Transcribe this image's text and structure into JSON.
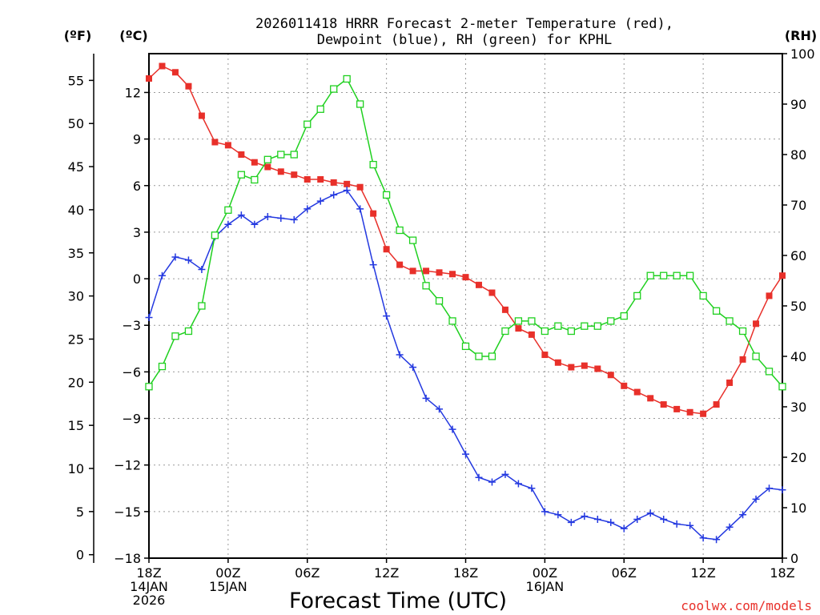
{
  "chart_data": {
    "type": "line",
    "title_lines": [
      "2026011418 HRRR Forecast 2-meter Temperature (red),",
      "Dewpoint (blue), RH (green) for KPHL"
    ],
    "units": {
      "fahrenheit": "(ºF)",
      "celsius": "(ºC)",
      "rh": "(RH)"
    },
    "xlabel": "Forecast Time (UTC)",
    "credit": "coolwx.com/models",
    "x_range_hours": [
      0,
      48
    ],
    "x_ticks": [
      {
        "hour": 0,
        "lines": [
          "18Z",
          "14JAN",
          "2026"
        ]
      },
      {
        "hour": 6,
        "lines": [
          "00Z",
          "15JAN"
        ]
      },
      {
        "hour": 12,
        "lines": [
          "06Z"
        ]
      },
      {
        "hour": 18,
        "lines": [
          "12Z"
        ]
      },
      {
        "hour": 24,
        "lines": [
          "18Z"
        ]
      },
      {
        "hour": 30,
        "lines": [
          "00Z",
          "16JAN"
        ]
      },
      {
        "hour": 36,
        "lines": [
          "06Z"
        ]
      },
      {
        "hour": 42,
        "lines": [
          "12Z"
        ]
      },
      {
        "hour": 48,
        "lines": [
          "18Z"
        ]
      }
    ],
    "celsius_axis": {
      "range": [
        -18,
        14.5
      ],
      "ticks": [
        "12",
        "9",
        "6",
        "3",
        "0",
        "−3",
        "−6",
        "−9",
        "−12",
        "−15",
        "−18"
      ],
      "tick_values": [
        12,
        9,
        6,
        3,
        0,
        -3,
        -6,
        -9,
        -12,
        -15,
        -18
      ]
    },
    "fahrenheit_axis": {
      "ticks": [
        "55",
        "50",
        "45",
        "40",
        "35",
        "30",
        "25",
        "20",
        "15",
        "10",
        "5",
        "0"
      ],
      "tick_values": [
        55,
        50,
        45,
        40,
        35,
        30,
        25,
        20,
        15,
        10,
        5,
        0
      ]
    },
    "rh_axis": {
      "range": [
        0,
        100
      ],
      "ticks": [
        "100",
        "90",
        "80",
        "70",
        "60",
        "50",
        "40",
        "30",
        "20",
        "10",
        "0"
      ],
      "tick_values": [
        100,
        90,
        80,
        70,
        60,
        50,
        40,
        30,
        20,
        10,
        0
      ]
    },
    "hours": [
      0,
      1,
      2,
      3,
      4,
      5,
      6,
      7,
      8,
      9,
      10,
      11,
      12,
      13,
      14,
      15,
      16,
      17,
      18,
      19,
      20,
      21,
      22,
      23,
      24,
      25,
      26,
      27,
      28,
      29,
      30,
      31,
      32,
      33,
      34,
      35,
      36,
      37,
      38,
      39,
      40,
      41,
      42,
      43,
      44,
      45,
      46,
      47,
      48
    ],
    "series": [
      {
        "name": "2-meter Temperature",
        "axis": "celsius",
        "color": "#e8302a",
        "marker": "filled-square",
        "values": [
          12.9,
          13.7,
          13.3,
          12.4,
          10.5,
          8.8,
          8.6,
          8.0,
          7.5,
          7.2,
          6.9,
          6.7,
          6.4,
          6.4,
          6.2,
          6.1,
          5.9,
          4.2,
          1.9,
          0.9,
          0.5,
          0.5,
          0.4,
          0.3,
          0.1,
          -0.4,
          -0.9,
          -2.0,
          -3.2,
          -3.6,
          -4.9,
          -5.4,
          -5.7,
          -5.6,
          -5.8,
          -6.2,
          -6.9,
          -7.3,
          -7.7,
          -8.1,
          -8.4,
          -8.6,
          -8.7,
          -8.1,
          -6.7,
          -5.2,
          -2.9,
          -1.1,
          0.2
        ]
      },
      {
        "name": "Dewpoint",
        "axis": "celsius",
        "color": "#2439e0",
        "marker": "plus",
        "values": [
          -2.5,
          0.2,
          1.4,
          1.2,
          0.6,
          2.7,
          3.5,
          4.1,
          3.5,
          4.0,
          3.9,
          3.8,
          4.5,
          5.0,
          5.4,
          5.7,
          4.5,
          0.9,
          -2.4,
          -4.9,
          -5.7,
          -7.7,
          -8.4,
          -9.7,
          -11.3,
          -12.8,
          -13.1,
          -12.6,
          -13.2,
          -13.5,
          -15.0,
          -15.2,
          -15.7,
          -15.3,
          -15.5,
          -15.7,
          -16.1,
          -15.5,
          -15.1,
          -15.5,
          -15.8,
          -15.9,
          -16.7,
          -16.8,
          -16.0,
          -15.2,
          -14.2,
          -13.5,
          -13.6
        ]
      },
      {
        "name": "Relative Humidity",
        "axis": "rh",
        "color": "#1fd01f",
        "marker": "open-square",
        "values": [
          34,
          38,
          44,
          45,
          50,
          64,
          69,
          76,
          75,
          79,
          80,
          80,
          86,
          89,
          93,
          95,
          90,
          78,
          72,
          65,
          63,
          54,
          51,
          47,
          42,
          40,
          40,
          45,
          47,
          47,
          45,
          46,
          45,
          46,
          46,
          47,
          48,
          52,
          56,
          56,
          56,
          56,
          52,
          49,
          47,
          45,
          40,
          37,
          34
        ]
      }
    ]
  }
}
